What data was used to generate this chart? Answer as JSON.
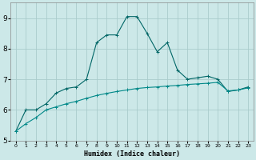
{
  "xlabel": "Humidex (Indice chaleur)",
  "bg_color": "#cce8e8",
  "grid_color": "#aacccc",
  "line_color1": "#006666",
  "line_color2": "#008888",
  "xlim": [
    -0.5,
    23.5
  ],
  "ylim": [
    5.0,
    9.5
  ],
  "yticks": [
    5,
    6,
    7,
    8,
    9
  ],
  "xticks": [
    0,
    1,
    2,
    3,
    4,
    5,
    6,
    7,
    8,
    9,
    10,
    11,
    12,
    13,
    14,
    15,
    16,
    17,
    18,
    19,
    20,
    21,
    22,
    23
  ],
  "xtick_labels": [
    "0",
    "1",
    "2",
    "3",
    "4",
    "5",
    "6",
    "7",
    "8",
    "9",
    "10",
    "11",
    "12",
    "13",
    "14",
    "15",
    "16",
    "17",
    "18",
    "19",
    "20",
    "21",
    "22",
    "23"
  ],
  "series1_x": [
    0,
    1,
    2,
    3,
    4,
    5,
    6,
    7,
    8,
    9,
    10,
    11,
    12,
    13,
    14,
    15,
    16,
    17,
    18,
    19,
    20,
    21,
    22,
    23
  ],
  "series1_y": [
    5.3,
    6.0,
    6.0,
    6.2,
    6.55,
    6.7,
    6.75,
    7.0,
    8.2,
    8.45,
    8.45,
    9.05,
    9.05,
    8.5,
    7.9,
    8.2,
    7.3,
    7.0,
    7.05,
    7.1,
    7.0,
    6.6,
    6.65,
    6.75
  ],
  "series2_x": [
    0,
    1,
    2,
    3,
    4,
    5,
    6,
    7,
    8,
    9,
    10,
    11,
    12,
    13,
    14,
    15,
    16,
    17,
    18,
    19,
    20,
    21,
    22,
    23
  ],
  "series2_y": [
    5.3,
    5.55,
    5.75,
    6.0,
    6.1,
    6.2,
    6.28,
    6.38,
    6.47,
    6.54,
    6.6,
    6.65,
    6.7,
    6.73,
    6.75,
    6.78,
    6.8,
    6.83,
    6.85,
    6.87,
    6.9,
    6.62,
    6.65,
    6.72
  ]
}
